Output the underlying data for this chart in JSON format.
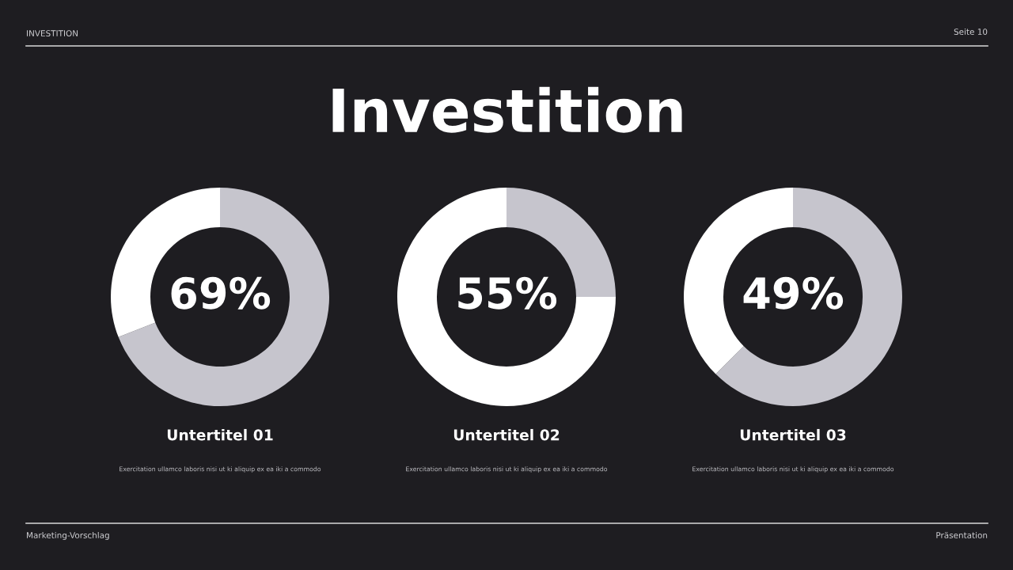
{
  "chart_data": [
    {
      "type": "other",
      "title": "Investition",
      "annotations": [
        "INVESTITION",
        "Seite 10",
        "Marketing-Vorschlag",
        "Präsentation"
      ]
    },
    {
      "type": "donut",
      "title": "Untertitel 01",
      "categories": [
        null,
        null
      ],
      "values": [
        69,
        31
      ],
      "colors": [
        "#c6c5cd",
        "#ffffff"
      ],
      "annotations": [
        "69%",
        "Exercitation ullamco laboris nisi ut ki aliquip ex ea iki a commodo"
      ]
    },
    {
      "type": "donut",
      "title": "Untertitel 02",
      "categories": [
        null,
        null
      ],
      "values": [
        25,
        75
      ],
      "colors": [
        "#c6c5cd",
        "#ffffff"
      ],
      "annotations": [
        "55%",
        "Exercitation ullamco laboris nisi ut ki aliquip ex ea iki a commodo"
      ]
    },
    {
      "type": "donut",
      "title": "Untertitel 03",
      "categories": [
        null,
        null
      ],
      "values": [
        62.5,
        37.5
      ],
      "colors": [
        "#c6c5cd",
        "#ffffff"
      ],
      "annotations": [
        "49%",
        "Exercitation ullamco laboris nisi ut ki aliquip ex ea iki a commodo"
      ]
    }
  ]
}
